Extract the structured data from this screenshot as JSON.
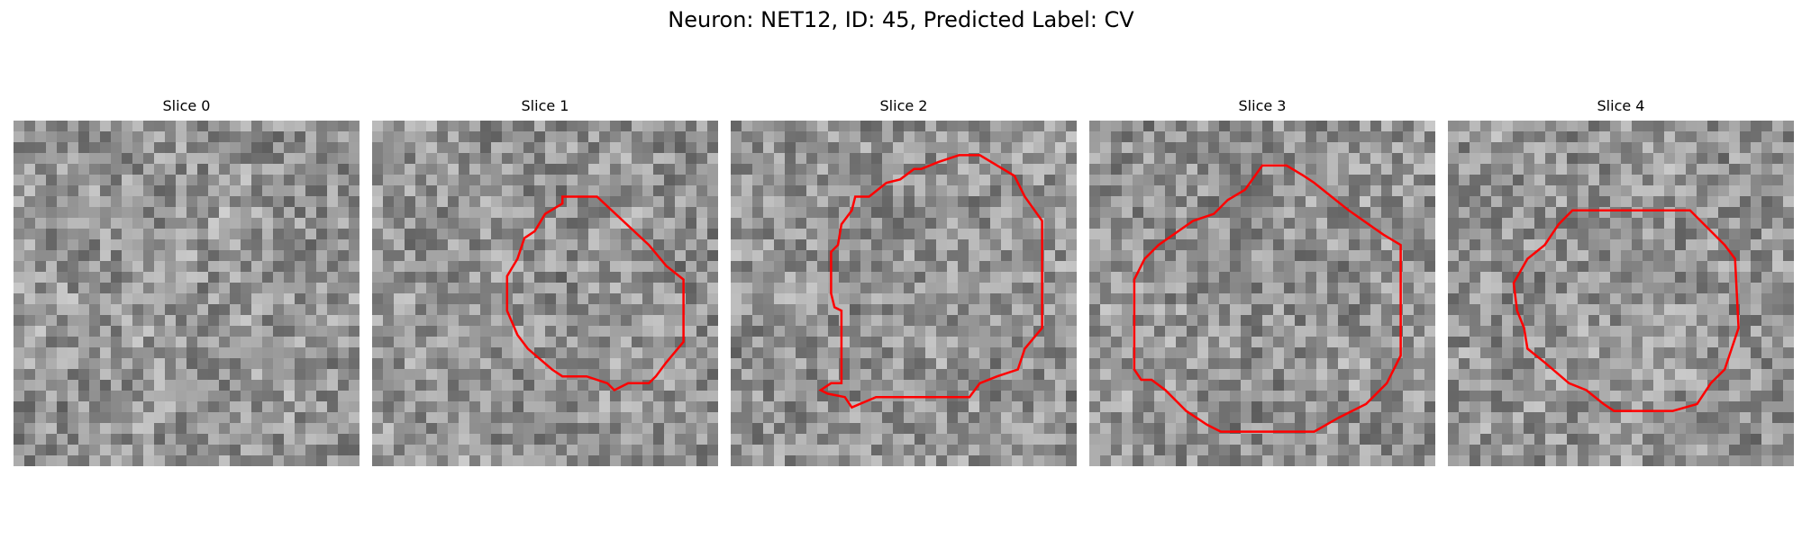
{
  "figure": {
    "title": "Neuron: NET12, ID: 45, Predicted Label: CV"
  },
  "panels": [
    {
      "title": "Slice 0",
      "seed": 11,
      "contour": []
    },
    {
      "title": "Slice 1",
      "seed": 27,
      "contour": [
        [
          0.55,
          0.22
        ],
        [
          0.65,
          0.22
        ],
        [
          0.8,
          0.36
        ],
        [
          0.85,
          0.42
        ],
        [
          0.9,
          0.46
        ],
        [
          0.9,
          0.64
        ],
        [
          0.85,
          0.7
        ],
        [
          0.82,
          0.74
        ],
        [
          0.8,
          0.76
        ],
        [
          0.74,
          0.76
        ],
        [
          0.7,
          0.78
        ],
        [
          0.68,
          0.76
        ],
        [
          0.62,
          0.74
        ],
        [
          0.55,
          0.74
        ],
        [
          0.52,
          0.72
        ],
        [
          0.45,
          0.66
        ],
        [
          0.42,
          0.62
        ],
        [
          0.39,
          0.55
        ],
        [
          0.39,
          0.45
        ],
        [
          0.42,
          0.4
        ],
        [
          0.44,
          0.34
        ],
        [
          0.47,
          0.32
        ],
        [
          0.5,
          0.27
        ],
        [
          0.55,
          0.24
        ]
      ]
    },
    {
      "title": "Slice 2",
      "seed": 43,
      "contour": [
        [
          0.55,
          0.14
        ],
        [
          0.6,
          0.12
        ],
        [
          0.66,
          0.1
        ],
        [
          0.72,
          0.1
        ],
        [
          0.82,
          0.16
        ],
        [
          0.85,
          0.22
        ],
        [
          0.9,
          0.29
        ],
        [
          0.9,
          0.6
        ],
        [
          0.85,
          0.66
        ],
        [
          0.83,
          0.72
        ],
        [
          0.77,
          0.74
        ],
        [
          0.72,
          0.76
        ],
        [
          0.69,
          0.8
        ],
        [
          0.63,
          0.8
        ],
        [
          0.42,
          0.8
        ],
        [
          0.35,
          0.83
        ],
        [
          0.33,
          0.8
        ],
        [
          0.28,
          0.79
        ],
        [
          0.26,
          0.78
        ],
        [
          0.29,
          0.76
        ],
        [
          0.32,
          0.76
        ],
        [
          0.32,
          0.55
        ],
        [
          0.3,
          0.54
        ],
        [
          0.29,
          0.5
        ],
        [
          0.29,
          0.38
        ],
        [
          0.31,
          0.36
        ],
        [
          0.32,
          0.3
        ],
        [
          0.35,
          0.26
        ],
        [
          0.36,
          0.22
        ],
        [
          0.4,
          0.22
        ],
        [
          0.45,
          0.18
        ],
        [
          0.49,
          0.17
        ],
        [
          0.53,
          0.14
        ]
      ]
    },
    {
      "title": "Slice 3",
      "seed": 67,
      "contour": [
        [
          0.5,
          0.13
        ],
        [
          0.57,
          0.13
        ],
        [
          0.62,
          0.16
        ],
        [
          0.65,
          0.18
        ],
        [
          0.7,
          0.22
        ],
        [
          0.75,
          0.26
        ],
        [
          0.85,
          0.33
        ],
        [
          0.9,
          0.36
        ],
        [
          0.9,
          0.68
        ],
        [
          0.86,
          0.76
        ],
        [
          0.8,
          0.82
        ],
        [
          0.72,
          0.86
        ],
        [
          0.65,
          0.9
        ],
        [
          0.6,
          0.9
        ],
        [
          0.38,
          0.9
        ],
        [
          0.34,
          0.88
        ],
        [
          0.28,
          0.84
        ],
        [
          0.22,
          0.78
        ],
        [
          0.18,
          0.75
        ],
        [
          0.15,
          0.75
        ],
        [
          0.13,
          0.72
        ],
        [
          0.13,
          0.55
        ],
        [
          0.13,
          0.46
        ],
        [
          0.16,
          0.4
        ],
        [
          0.2,
          0.36
        ],
        [
          0.3,
          0.29
        ],
        [
          0.36,
          0.27
        ],
        [
          0.4,
          0.23
        ],
        [
          0.45,
          0.2
        ]
      ]
    },
    {
      "title": "Slice 4",
      "seed": 89,
      "contour": [
        [
          0.4,
          0.26
        ],
        [
          0.45,
          0.26
        ],
        [
          0.55,
          0.26
        ],
        [
          0.7,
          0.26
        ],
        [
          0.8,
          0.36
        ],
        [
          0.83,
          0.4
        ],
        [
          0.84,
          0.6
        ],
        [
          0.82,
          0.66
        ],
        [
          0.8,
          0.72
        ],
        [
          0.76,
          0.76
        ],
        [
          0.72,
          0.82
        ],
        [
          0.65,
          0.84
        ],
        [
          0.6,
          0.84
        ],
        [
          0.48,
          0.84
        ],
        [
          0.45,
          0.82
        ],
        [
          0.4,
          0.78
        ],
        [
          0.35,
          0.76
        ],
        [
          0.28,
          0.7
        ],
        [
          0.23,
          0.66
        ],
        [
          0.22,
          0.6
        ],
        [
          0.2,
          0.55
        ],
        [
          0.19,
          0.47
        ],
        [
          0.23,
          0.4
        ],
        [
          0.28,
          0.36
        ],
        [
          0.32,
          0.3
        ],
        [
          0.36,
          0.26
        ]
      ]
    }
  ],
  "colors": {
    "contour": "#ff0000"
  }
}
